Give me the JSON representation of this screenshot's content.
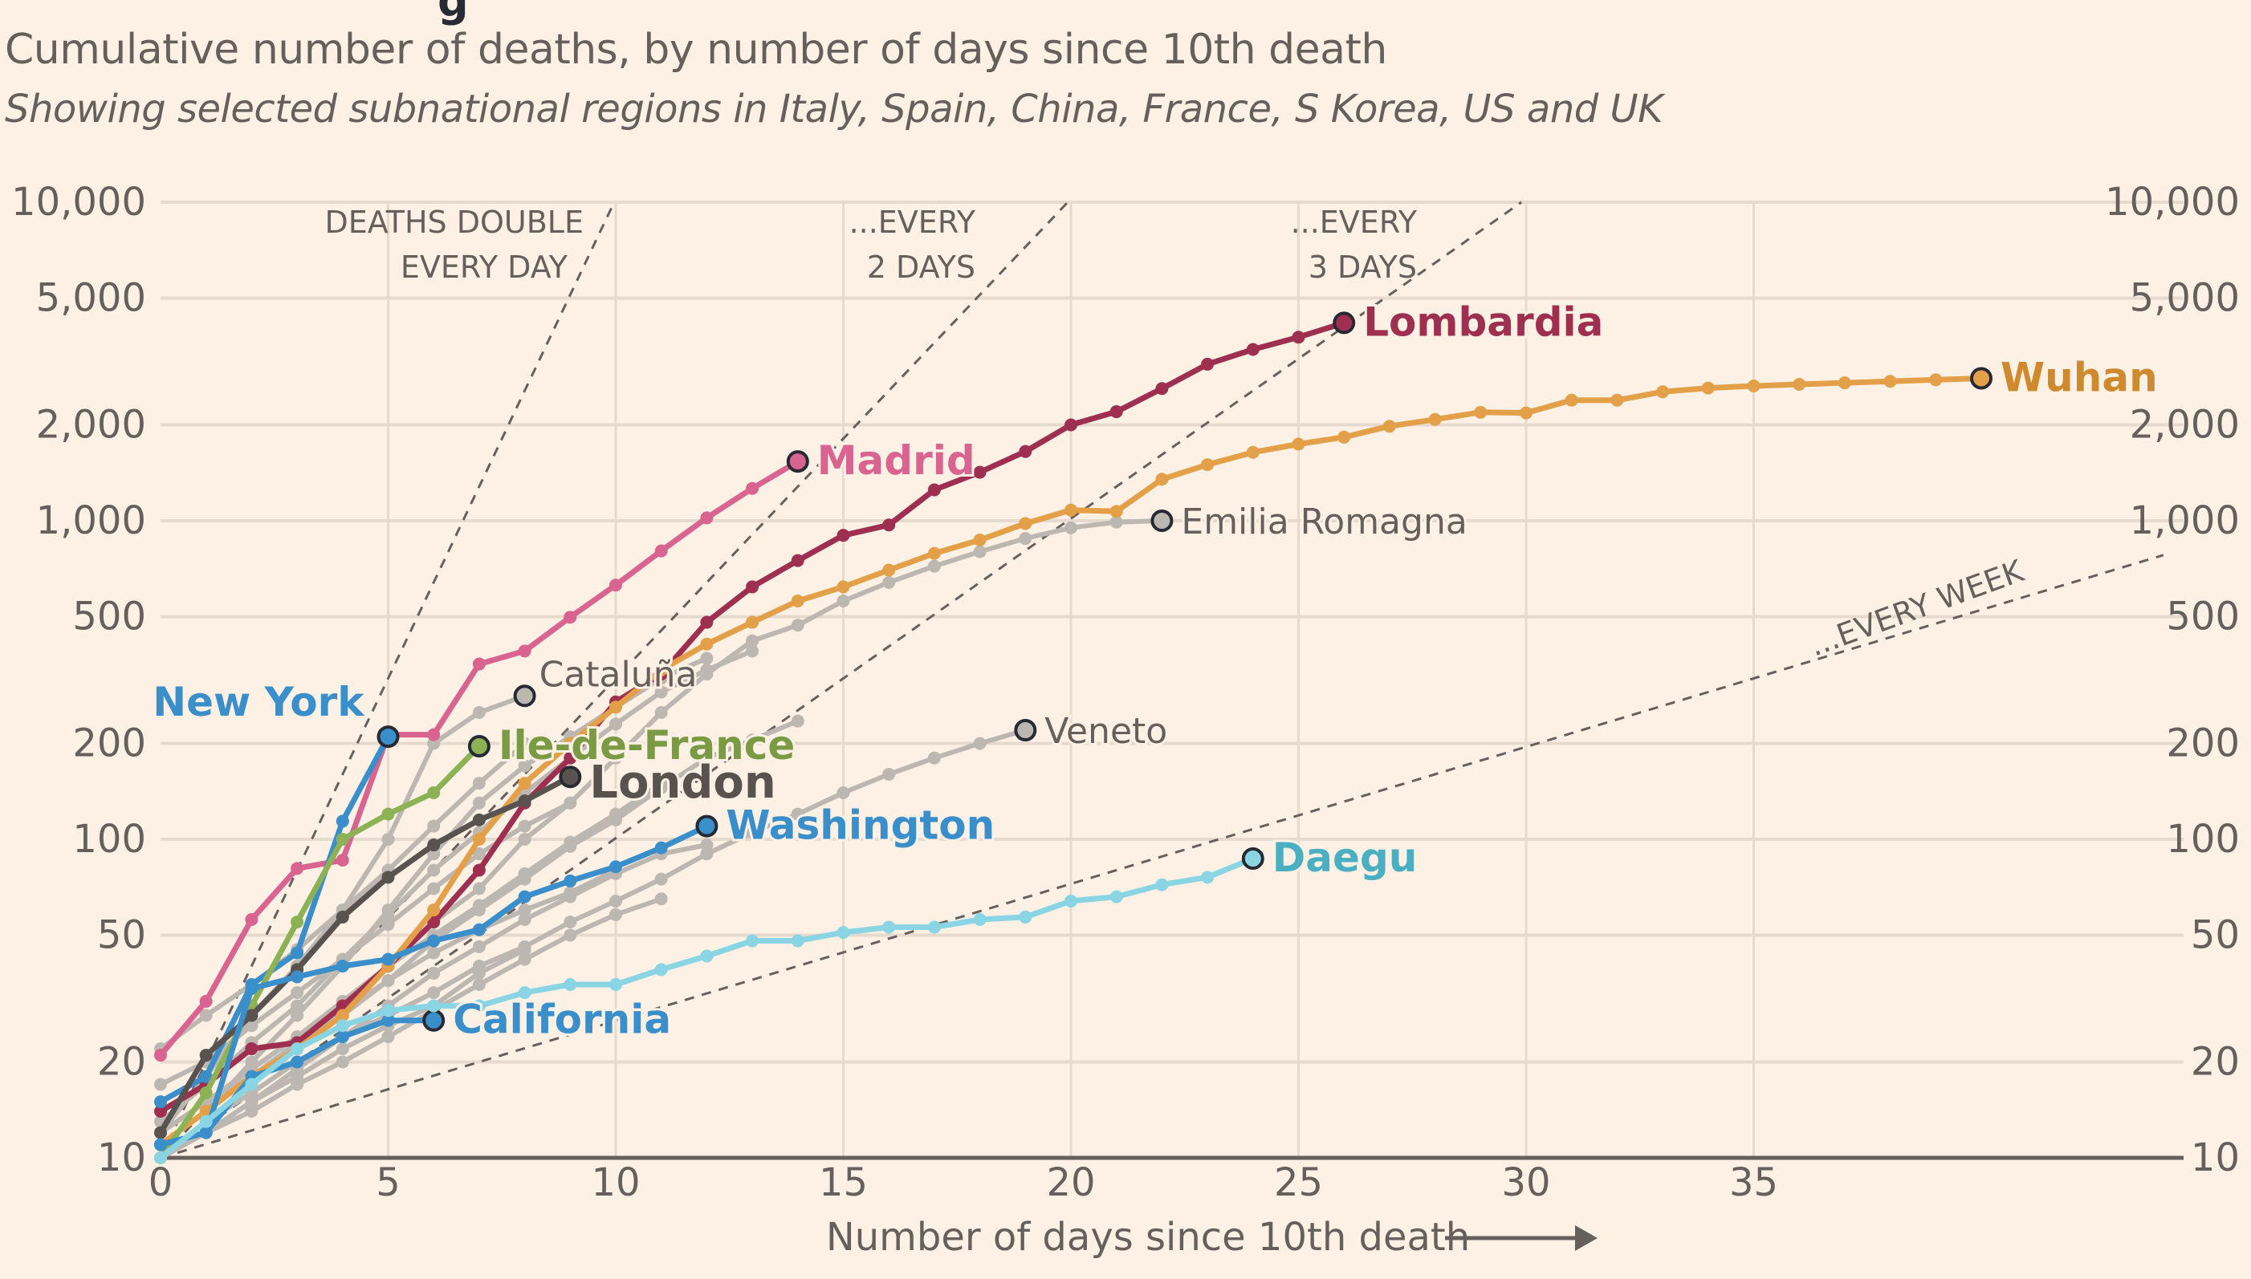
{
  "header": {
    "title_partial": "g",
    "subtitle": "Cumulative number of deaths, by number of days since 10th death",
    "description": "Showing selected subnational regions in Italy, Spain, China, France, S Korea, US and UK"
  },
  "chart_data": {
    "type": "line",
    "title": "Cumulative number of deaths, by number of days since 10th death",
    "subtitle": "Showing selected subnational regions in Italy, Spain, China, France, S Korea, US and UK",
    "xlabel": "Number of days since 10th death",
    "ylabel": "",
    "yscale": "log",
    "xlim": [
      0,
      44
    ],
    "ylim": [
      10,
      10000
    ],
    "x_ticks": [
      0,
      5,
      10,
      15,
      20,
      25,
      30,
      35
    ],
    "x_tick_labels": [
      "0",
      "5",
      "10",
      "15",
      "20",
      "25",
      "30",
      "35"
    ],
    "y_ticks": [
      10,
      20,
      50,
      100,
      200,
      500,
      1000,
      2000,
      5000,
      10000
    ],
    "y_tick_labels": [
      "10",
      "20",
      "50",
      "100",
      "200",
      "500",
      "1,000",
      "2,000",
      "5,000",
      "10,000"
    ],
    "grid": true,
    "reference_lines": [
      {
        "name": "doubling-1-day",
        "label_lines": [
          "DEATHS DOUBLE",
          "EVERY DAY"
        ],
        "doubling_days": 1
      },
      {
        "name": "doubling-2-days",
        "label_lines": [
          "...EVERY",
          "2 DAYS"
        ],
        "doubling_days": 2
      },
      {
        "name": "doubling-3-days",
        "label_lines": [
          "...EVERY",
          "3 DAYS"
        ],
        "doubling_days": 3
      },
      {
        "name": "doubling-week",
        "label_lines": [
          "...EVERY WEEK"
        ],
        "doubling_days": 7
      }
    ],
    "series": [
      {
        "name": "Lombardia",
        "color": "#9e2f50",
        "highlight": true,
        "label_style": "bold",
        "values": [
          14,
          17,
          22,
          23,
          30,
          40,
          55,
          80,
          130,
          180,
          270,
          330,
          480,
          620,
          750,
          900,
          970,
          1250,
          1420,
          1650,
          2000,
          2200,
          2600,
          3100,
          3450,
          3770,
          4180
        ]
      },
      {
        "name": "Wuhan",
        "color": "#e3a048",
        "highlight": true,
        "label_style": "bold",
        "values": [
          11,
          14,
          18,
          22,
          28,
          40,
          60,
          100,
          150,
          200,
          260,
          340,
          410,
          480,
          560,
          620,
          700,
          790,
          870,
          980,
          1080,
          1070,
          1350,
          1500,
          1640,
          1740,
          1830,
          1980,
          2080,
          2190,
          2180,
          2390,
          2390,
          2540,
          2610,
          2650,
          2680,
          2710,
          2740,
          2770,
          2800
        ]
      },
      {
        "name": "Madrid",
        "color": "#d8648f",
        "highlight": true,
        "label_style": "bold",
        "values": [
          21,
          31,
          56,
          81,
          86,
          213,
          213,
          355,
          390,
          498,
          628,
          804,
          1021,
          1263,
          1535
        ]
      },
      {
        "name": "Emilia Romagna",
        "color": "#bdb7b1",
        "highlight": false,
        "label_style": "normal",
        "values": [
          12,
          15,
          18,
          23,
          30,
          40,
          55,
          70,
          100,
          130,
          180,
          250,
          330,
          420,
          470,
          560,
          640,
          720,
          800,
          880,
          950,
          990,
          1000
        ]
      },
      {
        "name": "Cataluña",
        "color": "#bdb7b1",
        "highlight": false,
        "label_style": "normal",
        "values": [
          12,
          18,
          28,
          40,
          60,
          100,
          200,
          250,
          282
        ]
      },
      {
        "name": "Veneto",
        "color": "#bdb7b1",
        "highlight": false,
        "label_style": "normal",
        "values": [
          10,
          13,
          16,
          20,
          24,
          28,
          33,
          40,
          46,
          55,
          64,
          75,
          90,
          105,
          120,
          140,
          160,
          180,
          200,
          220
        ]
      },
      {
        "name": "New York",
        "color": "#3a8fcb",
        "highlight": true,
        "label_style": "bold",
        "values": [
          15,
          18,
          35,
          44,
          114,
          210
        ]
      },
      {
        "name": "Ile-de-France",
        "color": "#8db155",
        "highlight": true,
        "label_style": "bold",
        "values": [
          10,
          16,
          30,
          55,
          100,
          120,
          140,
          196
        ]
      },
      {
        "name": "London",
        "color": "#58534f",
        "highlight": true,
        "label_style": "bold",
        "values": [
          12,
          21,
          28,
          39,
          57,
          76,
          96,
          115,
          132,
          157
        ]
      },
      {
        "name": "Washington",
        "color": "#3a8fcb",
        "highlight": true,
        "label_style": "bold",
        "values": [
          11,
          12,
          34,
          37,
          40,
          42,
          48,
          52,
          66,
          74,
          82,
          94,
          110
        ]
      },
      {
        "name": "California",
        "color": "#3a8fcb",
        "highlight": true,
        "label_style": "bold",
        "values": [
          11,
          12,
          18,
          20,
          24,
          27,
          27
        ]
      },
      {
        "name": "Daegu",
        "color": "#89d5e3",
        "highlight": true,
        "label_style": "bold",
        "values": [
          10,
          13,
          17,
          22,
          26,
          29,
          30,
          30,
          33,
          35,
          35,
          39,
          43,
          48,
          48,
          51,
          53,
          53,
          56,
          57,
          64,
          66,
          72,
          76,
          87
        ]
      },
      {
        "name": "other-1",
        "color": "#bdb7b1",
        "highlight": false,
        "label_style": "none",
        "values": [
          11,
          14,
          20,
          28,
          40,
          60,
          90,
          130,
          170,
          210,
          260,
          320,
          370
        ]
      },
      {
        "name": "other-2",
        "color": "#bdb7b1",
        "highlight": false,
        "label_style": "none",
        "values": [
          13,
          17,
          23,
          30,
          42,
          58,
          80,
          105,
          140,
          180,
          230,
          290,
          340,
          390
        ]
      },
      {
        "name": "other-3",
        "color": "#bdb7b1",
        "highlight": false,
        "label_style": "none",
        "values": [
          10,
          13,
          17,
          22,
          28,
          36,
          48,
          60,
          75,
          95,
          115,
          145,
          180,
          205,
          235
        ]
      },
      {
        "name": "other-4",
        "color": "#bdb7b1",
        "highlight": false,
        "label_style": "none",
        "values": [
          12,
          15,
          19,
          24,
          31,
          40,
          50,
          62,
          78,
          98,
          120,
          150
        ]
      },
      {
        "name": "other-5",
        "color": "#bdb7b1",
        "highlight": false,
        "label_style": "none",
        "values": [
          10,
          12,
          15,
          19,
          24,
          30,
          38,
          46,
          56,
          66,
          78,
          90,
          96
        ]
      },
      {
        "name": "other-6",
        "color": "#bdb7b1",
        "highlight": false,
        "label_style": "none",
        "values": [
          11,
          14,
          18,
          23,
          29,
          36,
          44,
          52,
          60,
          68,
          80
        ]
      },
      {
        "name": "other-7",
        "color": "#bdb7b1",
        "highlight": false,
        "label_style": "none",
        "values": [
          10,
          12,
          14,
          17,
          20,
          24,
          29,
          35,
          42,
          50,
          58,
          65
        ]
      },
      {
        "name": "other-8",
        "color": "#bdb7b1",
        "highlight": false,
        "label_style": "none",
        "values": [
          17,
          20,
          26,
          33,
          42,
          54,
          70,
          90,
          110,
          130
        ]
      },
      {
        "name": "other-9",
        "color": "#bdb7b1",
        "highlight": false,
        "label_style": "none",
        "values": [
          10,
          12,
          15,
          18,
          22,
          26,
          30,
          38,
          45
        ]
      },
      {
        "name": "other-10",
        "color": "#bdb7b1",
        "highlight": false,
        "label_style": "none",
        "values": [
          22,
          28,
          35,
          45,
          60,
          80,
          110,
          150,
          200
        ]
      }
    ]
  }
}
